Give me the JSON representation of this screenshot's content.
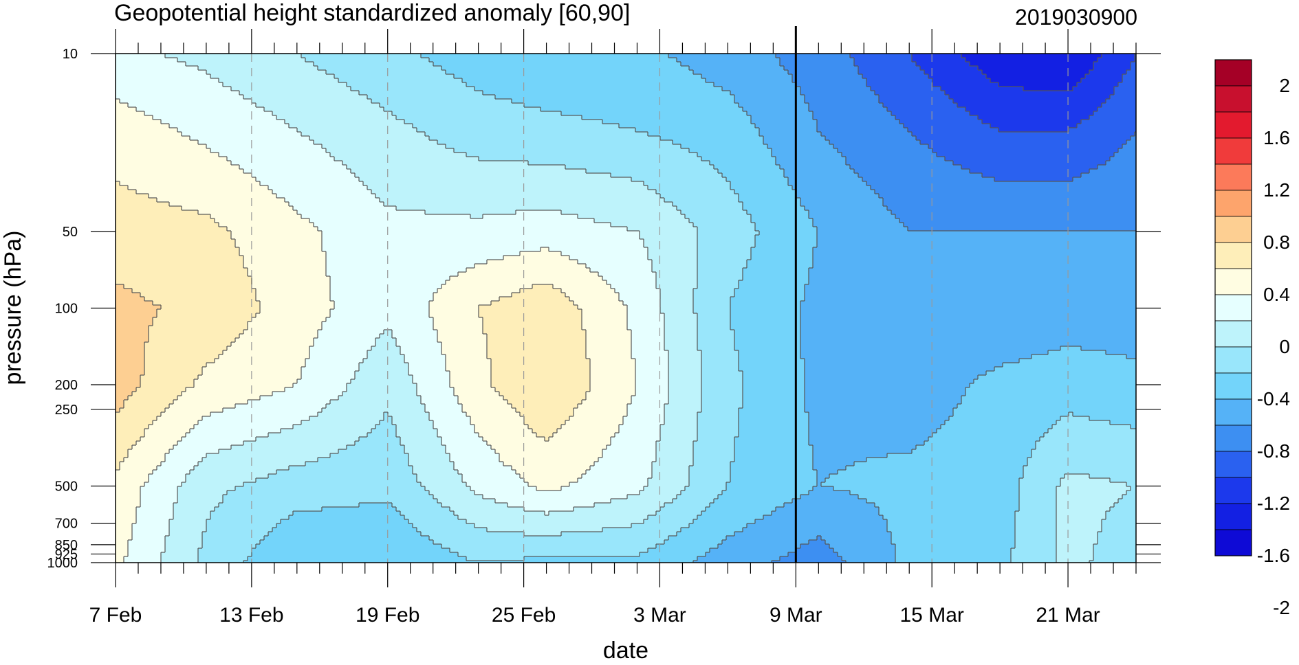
{
  "chart_data": {
    "type": "heatmap",
    "subtype": "filled-contour",
    "title": "Geopotential height standardized anomaly [60,90]",
    "right_title": "2019030900",
    "xlabel": "date",
    "ylabel": "pressure (hPa)",
    "x_range": [
      "2019-02-07",
      "2019-03-24"
    ],
    "x_ticks": [
      {
        "date": "2019-02-07",
        "label": "7 Feb"
      },
      {
        "date": "2019-02-13",
        "label": "13 Feb"
      },
      {
        "date": "2019-02-19",
        "label": "19 Feb"
      },
      {
        "date": "2019-02-25",
        "label": "25 Feb"
      },
      {
        "date": "2019-03-03",
        "label": "3 Mar"
      },
      {
        "date": "2019-03-09",
        "label": "9 Mar"
      },
      {
        "date": "2019-03-15",
        "label": "15 Mar"
      },
      {
        "date": "2019-03-21",
        "label": "21 Mar"
      }
    ],
    "y_scale": "log",
    "y_range": [
      1000,
      10
    ],
    "y_ticks": [
      10,
      50,
      100,
      200,
      250,
      500,
      700,
      850,
      925,
      1000
    ],
    "reference_line_date": "2019-03-09",
    "colorbar": {
      "labels": [
        "2",
        "1.6",
        "1.2",
        "0.8",
        "0.4",
        "0",
        "-0.4",
        "-0.8",
        "-1.2",
        "-1.6",
        "-2"
      ],
      "colors": [
        "#a50026",
        "#c8102e",
        "#e31a2e",
        "#f03b3b",
        "#fc7a5a",
        "#fda46c",
        "#fdcf92",
        "#feeeb9",
        "#fffde2",
        "#e6ffff",
        "#bef3fb",
        "#99e6fb",
        "#73d4fa",
        "#55b2f7",
        "#3d8ff2",
        "#2a61f0",
        "#1c39ec",
        "#1320e3",
        "#0e0ad6"
      ]
    },
    "levels": [
      -2.0,
      -1.8,
      -1.6,
      -1.4,
      -1.2,
      -1.0,
      -0.8,
      -0.6,
      -0.4,
      -0.2,
      0.0,
      0.2,
      0.4,
      0.6,
      0.8,
      1.0,
      1.2,
      1.4,
      1.6,
      1.8,
      2.0
    ],
    "grid": {
      "days": [
        0,
        4,
        8,
        12,
        16,
        19,
        23,
        27,
        31,
        35,
        39,
        42,
        45
      ],
      "pressures": [
        10,
        20,
        50,
        100,
        200,
        500,
        1000
      ],
      "z": [
        [
          0.05,
          -0.05,
          -0.2,
          -0.35,
          -0.5,
          -0.55,
          -0.55,
          -0.7,
          -0.9,
          -1.2,
          -1.55,
          -1.6,
          -1.2
        ],
        [
          0.3,
          0.15,
          0.0,
          -0.15,
          -0.3,
          -0.35,
          -0.4,
          -0.5,
          -0.8,
          -1.0,
          -1.2,
          -1.2,
          -1.0
        ],
        [
          0.5,
          0.45,
          0.25,
          0.05,
          0.05,
          0.1,
          0.0,
          -0.3,
          -0.6,
          -0.8,
          -0.8,
          -0.8,
          -0.8
        ],
        [
          0.65,
          0.55,
          0.3,
          0.05,
          0.4,
          0.55,
          0.15,
          -0.4,
          -0.65,
          -0.7,
          -0.75,
          -0.7,
          -0.7
        ],
        [
          0.7,
          0.35,
          0.2,
          -0.15,
          0.35,
          0.6,
          0.2,
          -0.35,
          -0.65,
          -0.7,
          -0.55,
          -0.5,
          -0.55
        ],
        [
          0.35,
          -0.15,
          -0.3,
          -0.35,
          0.05,
          0.25,
          0.05,
          -0.4,
          -0.6,
          -0.55,
          -0.5,
          -0.15,
          -0.2
        ],
        [
          0.25,
          -0.25,
          -0.6,
          -0.6,
          -0.4,
          -0.45,
          -0.45,
          -0.7,
          -0.9,
          -0.55,
          -0.45,
          -0.15,
          -0.3
        ]
      ]
    }
  }
}
